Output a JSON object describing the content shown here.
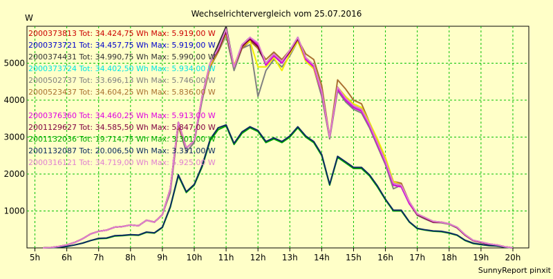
{
  "chart_data": {
    "type": "line",
    "title": "Wechselrichtervergleich vom 25.07.2016",
    "ylabel": "W",
    "xlabel": "",
    "footer": "SunnyReport pinxit",
    "ylim": [
      0,
      6000
    ],
    "xlim": [
      4.75,
      20.5
    ],
    "yticks": [
      1000,
      2000,
      3000,
      4000,
      5000
    ],
    "xticks": [
      {
        "v": 5,
        "label": "5h"
      },
      {
        "v": 6,
        "label": "6h"
      },
      {
        "v": 7,
        "label": "7h"
      },
      {
        "v": 8,
        "label": "8h"
      },
      {
        "v": 9,
        "label": "9h"
      },
      {
        "v": 10,
        "label": "10h"
      },
      {
        "v": 11,
        "label": "11h"
      },
      {
        "v": 12,
        "label": "12h"
      },
      {
        "v": 13,
        "label": "13h"
      },
      {
        "v": 14,
        "label": "14h"
      },
      {
        "v": 15,
        "label": "15h"
      },
      {
        "v": 16,
        "label": "16h"
      },
      {
        "v": 17,
        "label": "17h"
      },
      {
        "v": 18,
        "label": "18h"
      },
      {
        "v": 19,
        "label": "19h"
      },
      {
        "v": 20,
        "label": "20h"
      }
    ],
    "grid": true,
    "legend_placement": "top-left",
    "x": [
      5.25,
      5.5,
      5.75,
      6,
      6.25,
      6.5,
      6.75,
      7,
      7.25,
      7.5,
      7.75,
      8,
      8.25,
      8.5,
      8.75,
      9,
      9.25,
      9.5,
      9.75,
      10,
      10.25,
      10.5,
      10.75,
      11,
      11.25,
      11.5,
      11.75,
      12,
      12.25,
      12.5,
      12.75,
      13,
      13.25,
      13.5,
      13.75,
      14,
      14.25,
      14.5,
      14.75,
      15,
      15.25,
      15.5,
      15.75,
      16,
      16.25,
      16.5,
      16.75,
      17,
      17.25,
      17.5,
      17.75,
      18,
      18.25,
      18.5,
      18.75,
      19,
      19.25,
      19.5,
      19.75,
      20
    ],
    "series": [
      {
        "name": "2000373813",
        "legend": "2000373813 Tot: 34.424,75 Wh Max: 5.919,00 W",
        "color": "#cc0000",
        "values": [
          0,
          10,
          40,
          80,
          150,
          250,
          380,
          450,
          480,
          560,
          580,
          620,
          600,
          750,
          700,
          900,
          1600,
          3400,
          2700,
          2900,
          4100,
          5000,
          5400,
          5900,
          4900,
          5500,
          5700,
          5500,
          4950,
          5200,
          5000,
          5300,
          5700,
          5100,
          4900,
          4200,
          3000,
          4300,
          4000,
          3800,
          3700,
          3300,
          2800,
          2300,
          1700,
          1650,
          1200,
          900,
          800,
          700,
          700,
          650,
          550,
          350,
          200,
          150,
          100,
          80,
          30,
          0
        ]
      },
      {
        "name": "2000373721",
        "legend": "2000373721 Tot: 34.457,75 Wh Max: 5.919,00 W",
        "color": "#0000cc",
        "values": [
          0,
          10,
          40,
          80,
          150,
          250,
          380,
          450,
          480,
          560,
          580,
          620,
          600,
          750,
          700,
          900,
          1600,
          3400,
          2700,
          2900,
          4100,
          5000,
          5400,
          5900,
          4900,
          5500,
          5700,
          5500,
          4950,
          5200,
          5000,
          5300,
          5700,
          5100,
          4900,
          4200,
          3000,
          4300,
          4000,
          3800,
          3700,
          3300,
          2800,
          2300,
          1700,
          1650,
          1200,
          900,
          800,
          700,
          700,
          650,
          550,
          350,
          200,
          150,
          100,
          80,
          30,
          0
        ]
      },
      {
        "name": "2000374431",
        "legend": "2000374431 Tot: 34.990,75 Wh Max: 5.990,00 W",
        "color": "#333333",
        "values": [
          0,
          10,
          40,
          80,
          150,
          250,
          380,
          450,
          480,
          560,
          580,
          620,
          600,
          750,
          700,
          900,
          1600,
          3400,
          2700,
          2900,
          4100,
          5000,
          5500,
          5990,
          4900,
          5500,
          5650,
          5400,
          5000,
          5250,
          5050,
          5350,
          5700,
          5150,
          4950,
          4250,
          3000,
          4350,
          4050,
          3850,
          3750,
          3350,
          2850,
          2350,
          1750,
          1700,
          1250,
          920,
          820,
          720,
          700,
          650,
          560,
          360,
          210,
          160,
          110,
          80,
          30,
          0
        ]
      },
      {
        "name": "2000373724",
        "legend": "2000373724 Tot: 34.402,50 Wh Max: 5.934,00 W",
        "color": "#00e5e5",
        "values": [
          0,
          10,
          40,
          80,
          150,
          250,
          380,
          450,
          480,
          560,
          580,
          620,
          600,
          750,
          700,
          900,
          1600,
          3400,
          2700,
          2900,
          4100,
          5000,
          5400,
          5900,
          4900,
          5500,
          5700,
          5500,
          4950,
          5200,
          5000,
          5300,
          5700,
          5100,
          4900,
          4200,
          3000,
          4300,
          4000,
          3800,
          3700,
          3300,
          2800,
          2300,
          1700,
          1650,
          1200,
          900,
          800,
          700,
          700,
          650,
          550,
          350,
          200,
          150,
          100,
          80,
          30,
          0
        ]
      },
      {
        "name": "2000502737",
        "legend": "2000502737 Tot: 33.696,13 Wh Max: 5.746,00 W",
        "color": "#808080",
        "values": [
          0,
          10,
          40,
          80,
          150,
          250,
          380,
          450,
          480,
          560,
          580,
          620,
          600,
          750,
          700,
          900,
          1500,
          3300,
          2600,
          2850,
          4000,
          4900,
          5300,
          5746,
          4800,
          5400,
          5500,
          4100,
          4800,
          5100,
          4900,
          5200,
          5600,
          5050,
          4850,
          4100,
          2950,
          4250,
          3950,
          3750,
          3650,
          3250,
          2750,
          2250,
          1600,
          1700,
          1200,
          880,
          780,
          690,
          680,
          640,
          540,
          340,
          200,
          150,
          100,
          80,
          30,
          0
        ]
      },
      {
        "name": "2000523437",
        "legend": "2000523437 Tot: 34.604,25 Wh Max: 5.836,00 W",
        "color": "#aa7030",
        "values": [
          0,
          10,
          40,
          80,
          150,
          250,
          380,
          450,
          480,
          560,
          580,
          620,
          600,
          750,
          700,
          900,
          1600,
          3300,
          2700,
          2900,
          4100,
          4900,
          5300,
          5836,
          4900,
          5400,
          5600,
          5400,
          5100,
          5300,
          5100,
          5350,
          5650,
          5250,
          5100,
          4400,
          3000,
          4550,
          4300,
          4000,
          3900,
          3400,
          2900,
          2400,
          1800,
          1750,
          1250,
          900,
          800,
          700,
          700,
          650,
          550,
          350,
          200,
          150,
          100,
          80,
          30,
          0
        ]
      },
      {
        "name": "yellow",
        "legend": "",
        "color": "#f0f000",
        "values": [
          0,
          10,
          40,
          80,
          150,
          250,
          380,
          450,
          480,
          560,
          580,
          620,
          600,
          750,
          700,
          900,
          1600,
          3400,
          2700,
          2900,
          4100,
          4950,
          5350,
          5800,
          4950,
          5450,
          5600,
          4900,
          4900,
          5150,
          4800,
          5250,
          5600,
          5050,
          4850,
          4200,
          3000,
          4350,
          4100,
          3900,
          3800,
          3400,
          2950,
          2450,
          1800,
          1700,
          1200,
          900,
          800,
          700,
          700,
          650,
          550,
          350,
          200,
          150,
          100,
          80,
          30,
          0
        ]
      },
      {
        "name": "2000376360",
        "legend": "2000376360 Tot: 34.460,25 Wh Max: 5.913,00 W",
        "color": "#e000e0",
        "values": [
          0,
          10,
          40,
          80,
          150,
          250,
          380,
          450,
          480,
          560,
          580,
          620,
          600,
          750,
          700,
          900,
          1600,
          3400,
          2700,
          2900,
          4100,
          5000,
          5400,
          5913,
          4900,
          5500,
          5700,
          5500,
          4950,
          5200,
          5000,
          5300,
          5700,
          5100,
          4900,
          4200,
          3000,
          4300,
          4000,
          3800,
          3700,
          3300,
          2800,
          2300,
          1700,
          1650,
          1200,
          900,
          800,
          700,
          700,
          650,
          550,
          350,
          200,
          150,
          100,
          80,
          30,
          0
        ]
      },
      {
        "name": "2001129627",
        "legend": "2001129627 Tot: 34.585,50 Wh Max: 5.847,00 W",
        "color": "#800040",
        "values": [
          0,
          10,
          40,
          80,
          150,
          250,
          380,
          450,
          480,
          560,
          580,
          620,
          600,
          750,
          700,
          900,
          1600,
          3400,
          2700,
          2900,
          4100,
          5000,
          5350,
          5847,
          4900,
          5450,
          5650,
          5450,
          5000,
          5250,
          5050,
          5300,
          5650,
          5150,
          4950,
          4250,
          3000,
          4350,
          4050,
          3850,
          3750,
          3350,
          2850,
          2350,
          1750,
          1700,
          1250,
          900,
          800,
          700,
          700,
          650,
          550,
          350,
          200,
          150,
          100,
          80,
          30,
          0
        ]
      },
      {
        "name": "2001132036",
        "legend": "2001132036 Tot: 19.714,75 Wh Max: 3.301,00 W",
        "color": "#00aa00",
        "values": [
          0,
          5,
          20,
          40,
          80,
          130,
          200,
          250,
          260,
          320,
          330,
          350,
          340,
          420,
          400,
          550,
          1100,
          1950,
          1500,
          1700,
          2200,
          2900,
          3200,
          3301,
          2800,
          3100,
          3250,
          3150,
          2850,
          2950,
          2850,
          3000,
          3250,
          3000,
          2850,
          2500,
          1700,
          2450,
          2300,
          2150,
          2150,
          1950,
          1650,
          1300,
          1000,
          1000,
          700,
          520,
          480,
          450,
          440,
          400,
          340,
          200,
          120,
          90,
          60,
          50,
          20,
          0
        ]
      },
      {
        "name": "2001132087",
        "legend": "2001132087 Tot: 20.006,50 Wh Max: 3.331,00 W",
        "color": "#0a2a60",
        "values": [
          0,
          5,
          20,
          40,
          80,
          130,
          200,
          260,
          270,
          330,
          340,
          360,
          350,
          430,
          410,
          560,
          1120,
          1980,
          1520,
          1720,
          2230,
          2940,
          3250,
          3331,
          2830,
          3140,
          3280,
          3180,
          2880,
          2980,
          2880,
          3030,
          3280,
          3030,
          2880,
          2530,
          1720,
          2480,
          2330,
          2180,
          2180,
          1980,
          1680,
          1320,
          1020,
          1020,
          710,
          530,
          490,
          460,
          450,
          410,
          350,
          210,
          130,
          95,
          65,
          55,
          20,
          0
        ]
      },
      {
        "name": "2000316121",
        "legend": "2000316121 Tot: 34.719,00 Wh Max: 5.925,00 W",
        "color": "#e080d0",
        "values": [
          0,
          10,
          40,
          80,
          150,
          250,
          380,
          450,
          480,
          560,
          580,
          620,
          600,
          750,
          700,
          900,
          1600,
          3400,
          2700,
          2900,
          4100,
          5000,
          5400,
          5925,
          4900,
          5500,
          5700,
          5550,
          5000,
          5250,
          5050,
          5350,
          5700,
          5150,
          4950,
          4250,
          3000,
          4350,
          4050,
          3850,
          3750,
          3350,
          2850,
          2350,
          1750,
          1700,
          1250,
          920,
          820,
          720,
          700,
          650,
          560,
          360,
          210,
          160,
          110,
          80,
          30,
          0
        ]
      }
    ]
  }
}
